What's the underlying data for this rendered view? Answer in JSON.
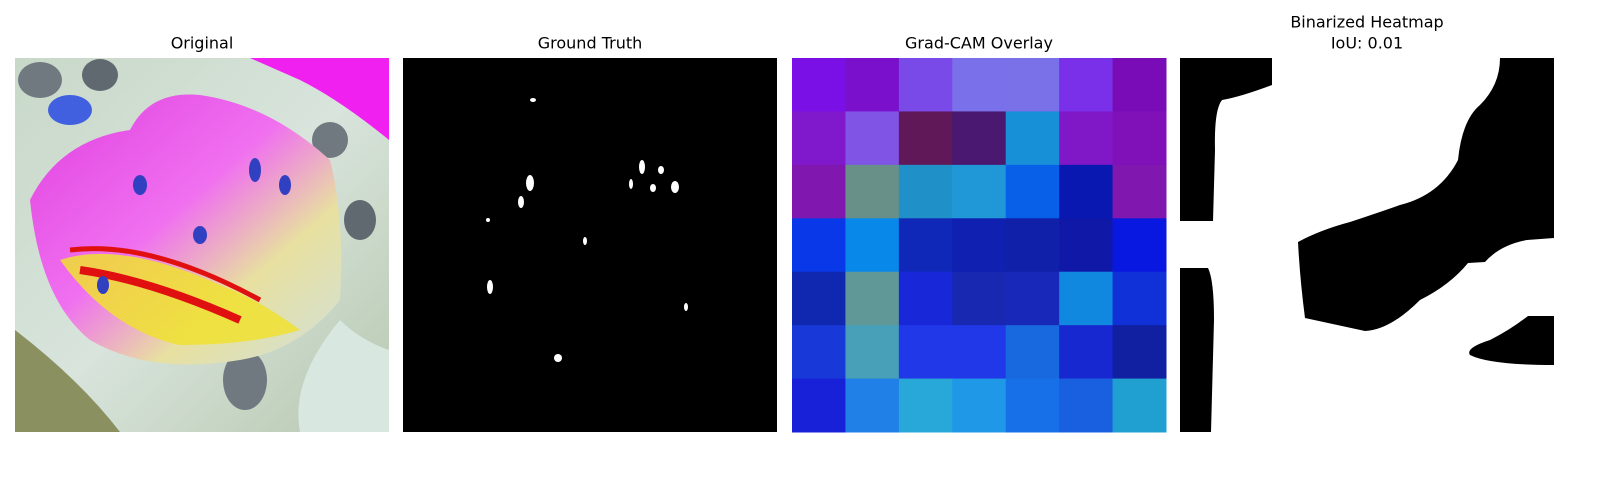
{
  "panels": [
    {
      "title": [
        "Original"
      ]
    },
    {
      "title": [
        "Ground Truth"
      ]
    },
    {
      "title": [
        "Grad-CAM Overlay"
      ]
    },
    {
      "title": [
        "Binarized Heatmap",
        "IoU: 0.01"
      ]
    }
  ]
}
